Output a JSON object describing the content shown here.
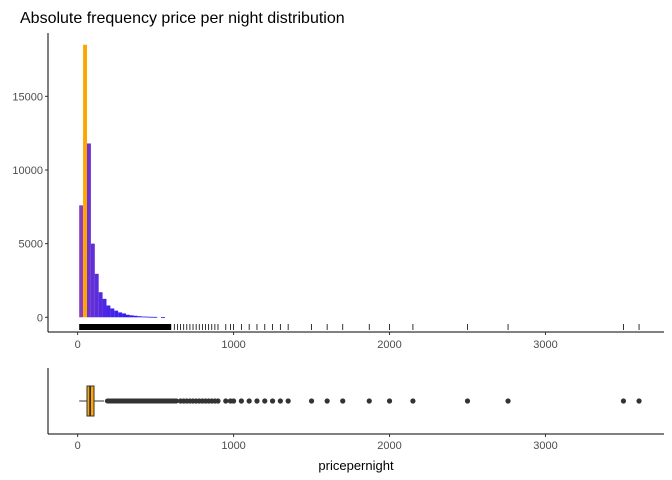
{
  "chart_data": [
    {
      "type": "bar",
      "title": "Absolute frequency price per night distribution",
      "xlabel": "",
      "ylabel": "",
      "xlim": [
        -190,
        3760
      ],
      "ylim": [
        -1000,
        19300
      ],
      "x_ticks": [
        0,
        1000,
        2000,
        3000
      ],
      "y_ticks": [
        0,
        5000,
        10000,
        15000
      ],
      "bin_width": 25,
      "gradient_colors": [
        "#9b45b3",
        "#1f16ff"
      ],
      "highlight_color": "#ffa500",
      "bins": [
        {
          "x0": 10,
          "x1": 35,
          "value": 7600
        },
        {
          "x0": 35,
          "x1": 60,
          "value": 18500,
          "highlight": true
        },
        {
          "x0": 60,
          "x1": 85,
          "value": 11800
        },
        {
          "x0": 85,
          "x1": 110,
          "value": 5000
        },
        {
          "x0": 110,
          "x1": 135,
          "value": 2950
        },
        {
          "x0": 135,
          "x1": 160,
          "value": 1700
        },
        {
          "x0": 160,
          "x1": 185,
          "value": 1250
        },
        {
          "x0": 185,
          "x1": 210,
          "value": 800
        },
        {
          "x0": 210,
          "x1": 235,
          "value": 600
        },
        {
          "x0": 235,
          "x1": 260,
          "value": 450
        },
        {
          "x0": 260,
          "x1": 285,
          "value": 330
        },
        {
          "x0": 285,
          "x1": 310,
          "value": 260
        },
        {
          "x0": 310,
          "x1": 335,
          "value": 170
        },
        {
          "x0": 335,
          "x1": 360,
          "value": 130
        },
        {
          "x0": 360,
          "x1": 385,
          "value": 100
        },
        {
          "x0": 385,
          "x1": 410,
          "value": 70
        },
        {
          "x0": 410,
          "x1": 435,
          "value": 50
        },
        {
          "x0": 435,
          "x1": 460,
          "value": 40
        },
        {
          "x0": 460,
          "x1": 485,
          "value": 30
        },
        {
          "x0": 485,
          "x1": 510,
          "value": 25
        },
        {
          "x0": 535,
          "x1": 560,
          "value": 15
        }
      ],
      "rug_dense_range": [
        10,
        600
      ],
      "rug": [
        620,
        640,
        660,
        680,
        700,
        720,
        740,
        760,
        780,
        800,
        820,
        840,
        860,
        880,
        900,
        950,
        980,
        1000,
        1050,
        1100,
        1150,
        1200,
        1250,
        1300,
        1350,
        1500,
        1600,
        1700,
        1870,
        2000,
        2150,
        2500,
        2760,
        3500,
        3600
      ]
    },
    {
      "type": "boxplot",
      "xlabel": "pricepernight",
      "xlim": [
        -190,
        3760
      ],
      "x_ticks": [
        0,
        1000,
        2000,
        3000
      ],
      "fill_color": "#ffa500",
      "min": 10,
      "q1": 60,
      "median": 80,
      "q3": 105,
      "whisker_high": 170,
      "outlier_dense_range": [
        175,
        650
      ],
      "outliers": [
        660,
        680,
        700,
        720,
        740,
        760,
        780,
        800,
        820,
        840,
        860,
        880,
        900,
        950,
        980,
        1000,
        1050,
        1100,
        1150,
        1200,
        1250,
        1300,
        1350,
        1500,
        1600,
        1700,
        1870,
        2000,
        2150,
        2500,
        2760,
        3500,
        3600
      ]
    }
  ]
}
